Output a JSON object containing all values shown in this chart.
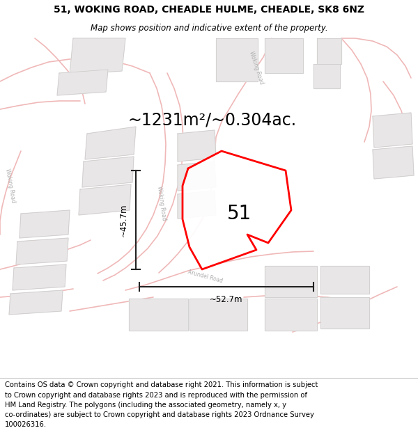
{
  "title": "51, WOKING ROAD, CHEADLE HULME, CHEADLE, SK8 6NZ",
  "subtitle": "Map shows position and indicative extent of the property.",
  "area_text": "~1231m²/~0.304ac.",
  "number_label": "51",
  "dim_vertical": "~45.7m",
  "dim_horizontal": "~52.7m",
  "footer_lines": [
    "Contains OS data © Crown copyright and database right 2021. This information is subject",
    "to Crown copyright and database rights 2023 and is reproduced with the permission of",
    "HM Land Registry. The polygons (including the associated geometry, namely x, y",
    "co-ordinates) are subject to Crown copyright and database rights 2023 Ordnance Survey",
    "100026316."
  ],
  "map_bg": "#ffffff",
  "road_color": "#f0b8b8",
  "road_lw": 1.2,
  "building_color": "#e8e6e6",
  "building_edge": "#ccc8c8",
  "property_color": "#ff0000",
  "dim_line_color": "#222222",
  "road_label_color": "#b0b0b0",
  "title_fontsize": 10,
  "subtitle_fontsize": 8.5,
  "area_fontsize": 17,
  "number_fontsize": 20,
  "footer_fontsize": 7.2,
  "dim_fontsize": 8.5
}
